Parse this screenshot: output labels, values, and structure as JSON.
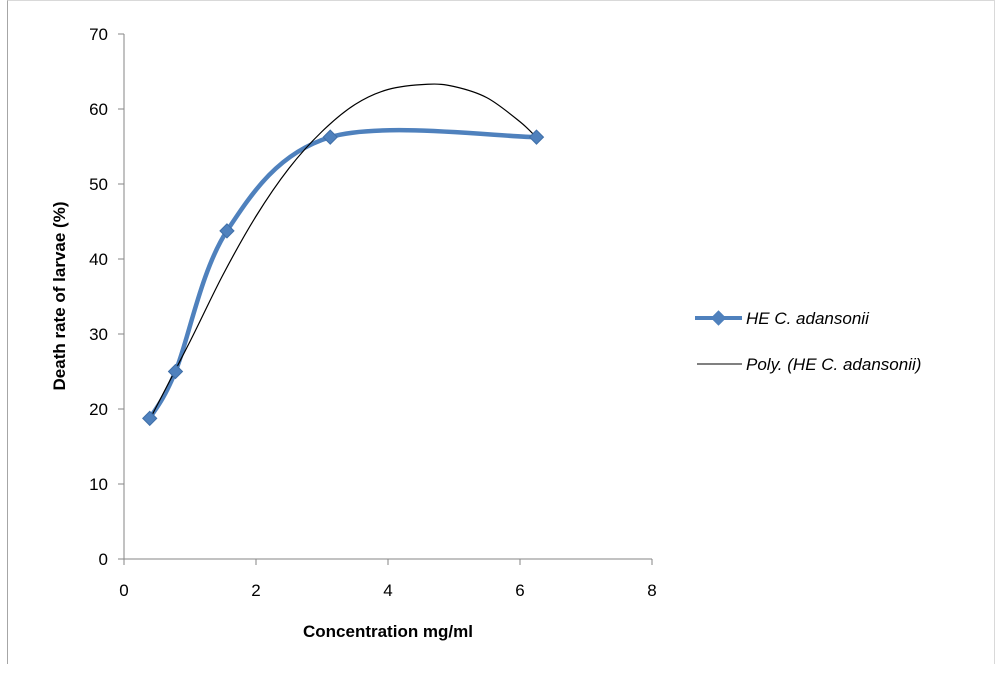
{
  "chart_data": {
    "type": "line",
    "title": "",
    "xlabel": "Concentration mg/ml",
    "ylabel": "Death  rate of larvae (%)",
    "xlim": [
      0,
      8
    ],
    "ylim": [
      0,
      70
    ],
    "xticks": [
      0,
      2,
      4,
      6,
      8
    ],
    "yticks": [
      0,
      10,
      20,
      30,
      40,
      50,
      60,
      70
    ],
    "grid": false,
    "legend_position": "right",
    "series": [
      {
        "name": "HE C. adansonii",
        "style": "smooth-line-with-diamond-markers",
        "color": "#4f81bd",
        "x": [
          0.39,
          0.78,
          1.56,
          3.125,
          6.25
        ],
        "y": [
          18.75,
          25,
          43.75,
          56.25,
          56.25
        ]
      },
      {
        "name": "Poly. (HE C. adansonii)",
        "style": "polynomial-trendline",
        "color": "#000000",
        "x": [
          0.39,
          1.0,
          1.5,
          2.0,
          2.5,
          3.0,
          3.5,
          4.0,
          4.6,
          5.0,
          5.5,
          6.0,
          6.25
        ],
        "y": [
          18.6,
          29.0,
          37.9,
          45.7,
          52.1,
          57.0,
          60.6,
          62.6,
          63.3,
          63.0,
          61.5,
          58.3,
          56.2
        ]
      }
    ]
  }
}
